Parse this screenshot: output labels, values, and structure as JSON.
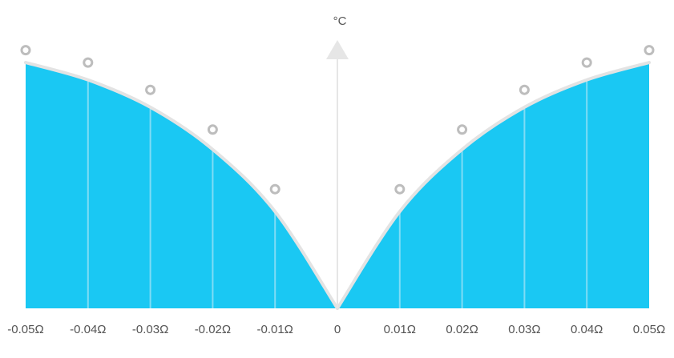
{
  "chart_data": {
    "type": "area",
    "y_unit_label": "°C",
    "x_tick_labels": [
      "-0.05Ω",
      "-0.04Ω",
      "-0.03Ω",
      "-0.02Ω",
      "-0.01Ω",
      "0",
      "0.01Ω",
      "0.02Ω",
      "0.03Ω",
      "0.04Ω",
      "0.05Ω"
    ],
    "x_ticks": [
      -0.05,
      -0.04,
      -0.03,
      -0.02,
      -0.01,
      0,
      0.01,
      0.02,
      0.03,
      0.04,
      0.05
    ],
    "xlim": [
      -0.05,
      0.05
    ],
    "ylim": [
      0,
      1
    ],
    "curve_points": [
      {
        "x": -0.05,
        "y": 0.99
      },
      {
        "x": -0.04,
        "y": 0.92
      },
      {
        "x": -0.03,
        "y": 0.81
      },
      {
        "x": -0.02,
        "y": 0.64
      },
      {
        "x": -0.01,
        "y": 0.39
      },
      {
        "x": 0,
        "y": 0
      },
      {
        "x": 0.01,
        "y": 0.39
      },
      {
        "x": 0.02,
        "y": 0.64
      },
      {
        "x": 0.03,
        "y": 0.81
      },
      {
        "x": 0.04,
        "y": 0.92
      },
      {
        "x": 0.05,
        "y": 0.99
      }
    ],
    "markers": [
      {
        "x": -0.05,
        "y": 1.04
      },
      {
        "x": -0.04,
        "y": 0.99
      },
      {
        "x": -0.03,
        "y": 0.88
      },
      {
        "x": -0.02,
        "y": 0.72
      },
      {
        "x": -0.01,
        "y": 0.48
      },
      {
        "x": 0.01,
        "y": 0.48
      },
      {
        "x": 0.02,
        "y": 0.72
      },
      {
        "x": 0.03,
        "y": 0.88
      },
      {
        "x": 0.04,
        "y": 0.99
      },
      {
        "x": 0.05,
        "y": 1.04
      }
    ],
    "grid": false,
    "colors": {
      "fill": "#1ac8f3",
      "curve": "#e3e3e3",
      "marker": "#bdbdbd",
      "axis": "#e6e6e6",
      "dividers": "#7fdcf5"
    }
  }
}
